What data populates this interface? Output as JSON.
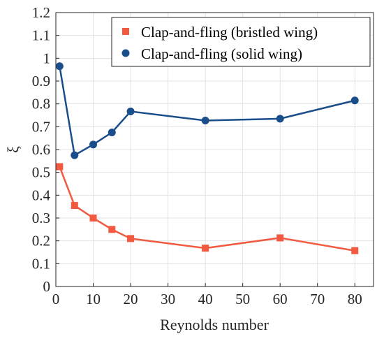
{
  "chart_data": {
    "type": "line",
    "xlabel": "Reynolds number",
    "ylabel": "ξ",
    "xlim": [
      0,
      85
    ],
    "ylim": [
      0,
      1.2
    ],
    "xticks": [
      0,
      10,
      20,
      30,
      40,
      50,
      60,
      70,
      80
    ],
    "yticks": [
      0,
      0.1,
      0.2,
      0.3,
      0.4,
      0.5,
      0.6,
      0.7,
      0.8,
      0.9,
      1,
      1.1,
      1.2
    ],
    "xtick_labels": [
      "0",
      "10",
      "20",
      "30",
      "40",
      "50",
      "60",
      "70",
      "80"
    ],
    "ytick_labels": [
      "0",
      "0.1",
      "0.2",
      "0.3",
      "0.4",
      "0.5",
      "0.6",
      "0.7",
      "0.8",
      "0.9",
      "1",
      "1.1",
      "1.2"
    ],
    "grid": true,
    "legend_position": "top-right",
    "series": [
      {
        "name": "Clap-and-fling (bristled wing)",
        "marker": "square",
        "color": "#f15a40",
        "x": [
          1,
          5,
          10,
          15,
          20,
          40,
          60,
          80
        ],
        "values": [
          0.525,
          0.355,
          0.3,
          0.25,
          0.21,
          0.168,
          0.213,
          0.157
        ]
      },
      {
        "name": "Clap-and-fling (solid wing)",
        "marker": "circle",
        "color": "#1a4e8a",
        "x": [
          1,
          5,
          10,
          15,
          20,
          40,
          60,
          80
        ],
        "values": [
          0.965,
          0.575,
          0.622,
          0.675,
          0.767,
          0.727,
          0.735,
          0.815
        ]
      }
    ]
  }
}
